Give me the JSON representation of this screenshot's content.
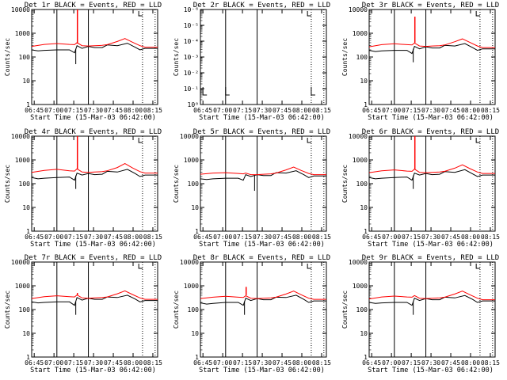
{
  "figure": {
    "xlabel": "Start Time (15-Mar-03 06:42:00)",
    "ylabel": "Counts/sec"
  },
  "colors": {
    "events": "#000000",
    "lld": "#ff0000",
    "axes": "#000000"
  },
  "x_ticks": [
    "06:45",
    "07:00",
    "07:15",
    "07:30",
    "07:45",
    "08:00",
    "08:15"
  ],
  "chart_data": [
    {
      "type": "line",
      "title": "Det 1r BLACK = Events, RED = LLD",
      "yscale": "log",
      "ylim": [
        1,
        10000
      ],
      "y_ticks": [
        "1",
        "10",
        "100",
        "1000",
        "10000"
      ],
      "series": [
        {
          "name": "Events",
          "x": [
            0,
            0.05,
            0.1,
            0.2,
            0.3,
            0.34,
            0.36,
            0.4,
            0.45,
            0.5,
            0.56,
            0.6,
            0.68,
            0.76,
            0.82,
            0.86,
            0.9,
            1.0
          ],
          "y": [
            200,
            180,
            190,
            200,
            200,
            150,
            300,
            230,
            280,
            250,
            250,
            320,
            300,
            380,
            260,
            200,
            230,
            230
          ]
        },
        {
          "name": "LLD",
          "x": [
            0,
            0.1,
            0.2,
            0.3,
            0.34,
            0.36,
            0.4,
            0.45,
            0.5,
            0.56,
            0.6,
            0.68,
            0.74,
            0.8,
            0.86,
            0.9,
            1.0
          ],
          "y": [
            280,
            340,
            370,
            340,
            330,
            400,
            300,
            290,
            300,
            310,
            330,
            450,
            600,
            420,
            300,
            260,
            260
          ]
        }
      ],
      "spike_x": 0.363,
      "spike_y": 10000,
      "dip_x": 0.35,
      "dip_y": 50
    },
    {
      "type": "line",
      "title": "Det 2r BLACK = Events, RED = LLD",
      "yscale": "log",
      "ylim": [
        1e-06,
        1
      ],
      "y_ticks": [
        "10⁰",
        "10⁻¹",
        "10⁻²",
        "10⁻³",
        "10⁻⁴",
        "10⁻⁵",
        "10⁻⁶"
      ],
      "series": []
    },
    {
      "type": "line",
      "title": "Det 3r BLACK = Events, RED = LLD",
      "yscale": "log",
      "ylim": [
        1,
        10000
      ],
      "y_ticks": [
        "1",
        "10",
        "100",
        "1000",
        "10000"
      ],
      "series": [
        {
          "name": "Events",
          "x": [
            0,
            0.05,
            0.1,
            0.2,
            0.3,
            0.34,
            0.36,
            0.4,
            0.45,
            0.5,
            0.56,
            0.6,
            0.68,
            0.76,
            0.82,
            0.86,
            0.9,
            1.0
          ],
          "y": [
            190,
            170,
            180,
            190,
            190,
            140,
            280,
            220,
            270,
            240,
            240,
            310,
            290,
            370,
            250,
            190,
            220,
            220
          ]
        },
        {
          "name": "LLD",
          "x": [
            0,
            0.1,
            0.2,
            0.3,
            0.34,
            0.36,
            0.4,
            0.45,
            0.5,
            0.56,
            0.6,
            0.68,
            0.74,
            0.8,
            0.86,
            0.9,
            1.0
          ],
          "y": [
            270,
            330,
            360,
            330,
            320,
            390,
            290,
            280,
            290,
            300,
            320,
            440,
            580,
            410,
            290,
            250,
            250
          ]
        }
      ],
      "spike_x": 0.363,
      "spike_y": 5000,
      "dip_x": 0.35,
      "dip_y": 60
    },
    {
      "type": "line",
      "title": "Det 4r BLACK = Events, RED = LLD",
      "yscale": "log",
      "ylim": [
        1,
        10000
      ],
      "y_ticks": [
        "1",
        "10",
        "100",
        "1000",
        "10000"
      ],
      "series": [
        {
          "name": "Events",
          "x": [
            0,
            0.05,
            0.1,
            0.2,
            0.3,
            0.34,
            0.36,
            0.4,
            0.45,
            0.5,
            0.56,
            0.6,
            0.68,
            0.76,
            0.82,
            0.86,
            0.9,
            1.0
          ],
          "y": [
            180,
            160,
            170,
            180,
            190,
            140,
            280,
            230,
            270,
            240,
            250,
            330,
            310,
            400,
            270,
            200,
            230,
            230
          ]
        },
        {
          "name": "LLD",
          "x": [
            0,
            0.1,
            0.2,
            0.3,
            0.34,
            0.36,
            0.4,
            0.45,
            0.5,
            0.56,
            0.6,
            0.68,
            0.74,
            0.8,
            0.86,
            0.9,
            1.0
          ],
          "y": [
            300,
            360,
            400,
            350,
            340,
            420,
            310,
            300,
            310,
            320,
            350,
            480,
            700,
            460,
            320,
            280,
            280
          ]
        }
      ],
      "spike_x": 0.363,
      "spike_y": 10000,
      "dip_x": 0.35,
      "dip_y": 60
    },
    {
      "type": "line",
      "title": "Det 5r BLACK = Events, RED = LLD",
      "yscale": "log",
      "ylim": [
        1,
        10000
      ],
      "y_ticks": [
        "1",
        "10",
        "100",
        "1000",
        "10000"
      ],
      "series": [
        {
          "name": "Events",
          "x": [
            0,
            0.05,
            0.1,
            0.2,
            0.3,
            0.34,
            0.36,
            0.4,
            0.45,
            0.5,
            0.56,
            0.6,
            0.68,
            0.76,
            0.82,
            0.86,
            0.9,
            1.0
          ],
          "y": [
            160,
            150,
            160,
            170,
            170,
            140,
            240,
            200,
            240,
            220,
            220,
            290,
            280,
            350,
            240,
            180,
            210,
            210
          ]
        },
        {
          "name": "LLD",
          "x": [
            0,
            0.1,
            0.2,
            0.3,
            0.34,
            0.36,
            0.4,
            0.45,
            0.5,
            0.56,
            0.6,
            0.68,
            0.74,
            0.8,
            0.86,
            0.9,
            1.0
          ],
          "y": [
            250,
            280,
            290,
            270,
            260,
            280,
            240,
            240,
            250,
            260,
            280,
            380,
            500,
            360,
            270,
            240,
            240
          ]
        }
      ],
      "spike_x": null,
      "spike_y": null,
      "dip_x": 0.43,
      "dip_y": 50
    },
    {
      "type": "line",
      "title": "Det 6r BLACK = Events, RED = LLD",
      "yscale": "log",
      "ylim": [
        1,
        10000
      ],
      "y_ticks": [
        "1",
        "10",
        "100",
        "1000",
        "10000"
      ],
      "series": [
        {
          "name": "Events",
          "x": [
            0,
            0.05,
            0.1,
            0.2,
            0.3,
            0.34,
            0.36,
            0.4,
            0.45,
            0.5,
            0.56,
            0.6,
            0.68,
            0.76,
            0.82,
            0.86,
            0.9,
            1.0
          ],
          "y": [
            180,
            160,
            170,
            180,
            190,
            140,
            280,
            230,
            270,
            240,
            250,
            320,
            300,
            390,
            260,
            200,
            230,
            230
          ]
        },
        {
          "name": "LLD",
          "x": [
            0,
            0.1,
            0.2,
            0.3,
            0.34,
            0.36,
            0.4,
            0.45,
            0.5,
            0.56,
            0.6,
            0.68,
            0.74,
            0.8,
            0.86,
            0.9,
            1.0
          ],
          "y": [
            290,
            350,
            380,
            340,
            330,
            410,
            300,
            290,
            300,
            310,
            330,
            450,
            620,
            430,
            310,
            270,
            270
          ]
        }
      ],
      "spike_x": 0.363,
      "spike_y": 10000,
      "dip_x": 0.35,
      "dip_y": 60
    },
    {
      "type": "line",
      "title": "Det 7r BLACK = Events, RED = LLD",
      "yscale": "log",
      "ylim": [
        1,
        10000
      ],
      "y_ticks": [
        "1",
        "10",
        "100",
        "1000",
        "10000"
      ],
      "series": [
        {
          "name": "Events",
          "x": [
            0,
            0.05,
            0.1,
            0.2,
            0.3,
            0.34,
            0.36,
            0.4,
            0.45,
            0.5,
            0.56,
            0.6,
            0.68,
            0.76,
            0.82,
            0.86,
            0.9,
            1.0
          ],
          "y": [
            210,
            190,
            200,
            210,
            210,
            150,
            320,
            250,
            300,
            270,
            270,
            340,
            320,
            400,
            280,
            210,
            240,
            240
          ]
        },
        {
          "name": "LLD",
          "x": [
            0,
            0.1,
            0.2,
            0.3,
            0.34,
            0.36,
            0.4,
            0.45,
            0.5,
            0.56,
            0.6,
            0.68,
            0.74,
            0.8,
            0.86,
            0.9,
            1.0
          ],
          "y": [
            290,
            350,
            380,
            350,
            340,
            410,
            310,
            300,
            310,
            320,
            340,
            460,
            610,
            430,
            310,
            270,
            270
          ]
        }
      ],
      "spike_x": 0.363,
      "spike_y": 500,
      "dip_x": 0.35,
      "dip_y": 60
    },
    {
      "type": "line",
      "title": "Det 8r BLACK = Events, RED = LLD",
      "yscale": "log",
      "ylim": [
        1,
        10000
      ],
      "y_ticks": [
        "1",
        "10",
        "100",
        "1000",
        "10000"
      ],
      "series": [
        {
          "name": "Events",
          "x": [
            0,
            0.05,
            0.1,
            0.2,
            0.3,
            0.34,
            0.36,
            0.4,
            0.45,
            0.5,
            0.56,
            0.6,
            0.68,
            0.76,
            0.82,
            0.86,
            0.9,
            1.0
          ],
          "y": [
            190,
            170,
            180,
            200,
            200,
            150,
            300,
            240,
            290,
            260,
            260,
            330,
            320,
            400,
            270,
            200,
            230,
            230
          ]
        },
        {
          "name": "LLD",
          "x": [
            0,
            0.1,
            0.2,
            0.3,
            0.34,
            0.36,
            0.4,
            0.45,
            0.5,
            0.56,
            0.6,
            0.68,
            0.74,
            0.8,
            0.86,
            0.9,
            1.0
          ],
          "y": [
            290,
            330,
            360,
            330,
            320,
            380,
            300,
            290,
            300,
            310,
            330,
            450,
            600,
            420,
            300,
            270,
            270
          ]
        }
      ],
      "spike_x": 0.363,
      "spike_y": 900,
      "dip_x": 0.35,
      "dip_y": 60
    },
    {
      "type": "line",
      "title": "Det 9r BLACK = Events, RED = LLD",
      "yscale": "log",
      "ylim": [
        1,
        10000
      ],
      "y_ticks": [
        "1",
        "10",
        "100",
        "1000",
        "10000"
      ],
      "series": [
        {
          "name": "Events",
          "x": [
            0,
            0.05,
            0.1,
            0.2,
            0.3,
            0.34,
            0.36,
            0.4,
            0.45,
            0.5,
            0.56,
            0.6,
            0.68,
            0.76,
            0.82,
            0.86,
            0.9,
            1.0
          ],
          "y": [
            200,
            180,
            190,
            200,
            200,
            150,
            300,
            240,
            290,
            260,
            260,
            330,
            310,
            390,
            270,
            200,
            230,
            230
          ]
        },
        {
          "name": "LLD",
          "x": [
            0,
            0.1,
            0.2,
            0.3,
            0.34,
            0.36,
            0.4,
            0.45,
            0.5,
            0.56,
            0.6,
            0.68,
            0.74,
            0.8,
            0.86,
            0.9,
            1.0
          ],
          "y": [
            280,
            340,
            370,
            340,
            330,
            390,
            300,
            290,
            300,
            310,
            330,
            450,
            600,
            420,
            300,
            260,
            260
          ]
        }
      ],
      "spike_x": null,
      "spike_y": null,
      "dip_x": 0.35,
      "dip_y": 60
    }
  ]
}
